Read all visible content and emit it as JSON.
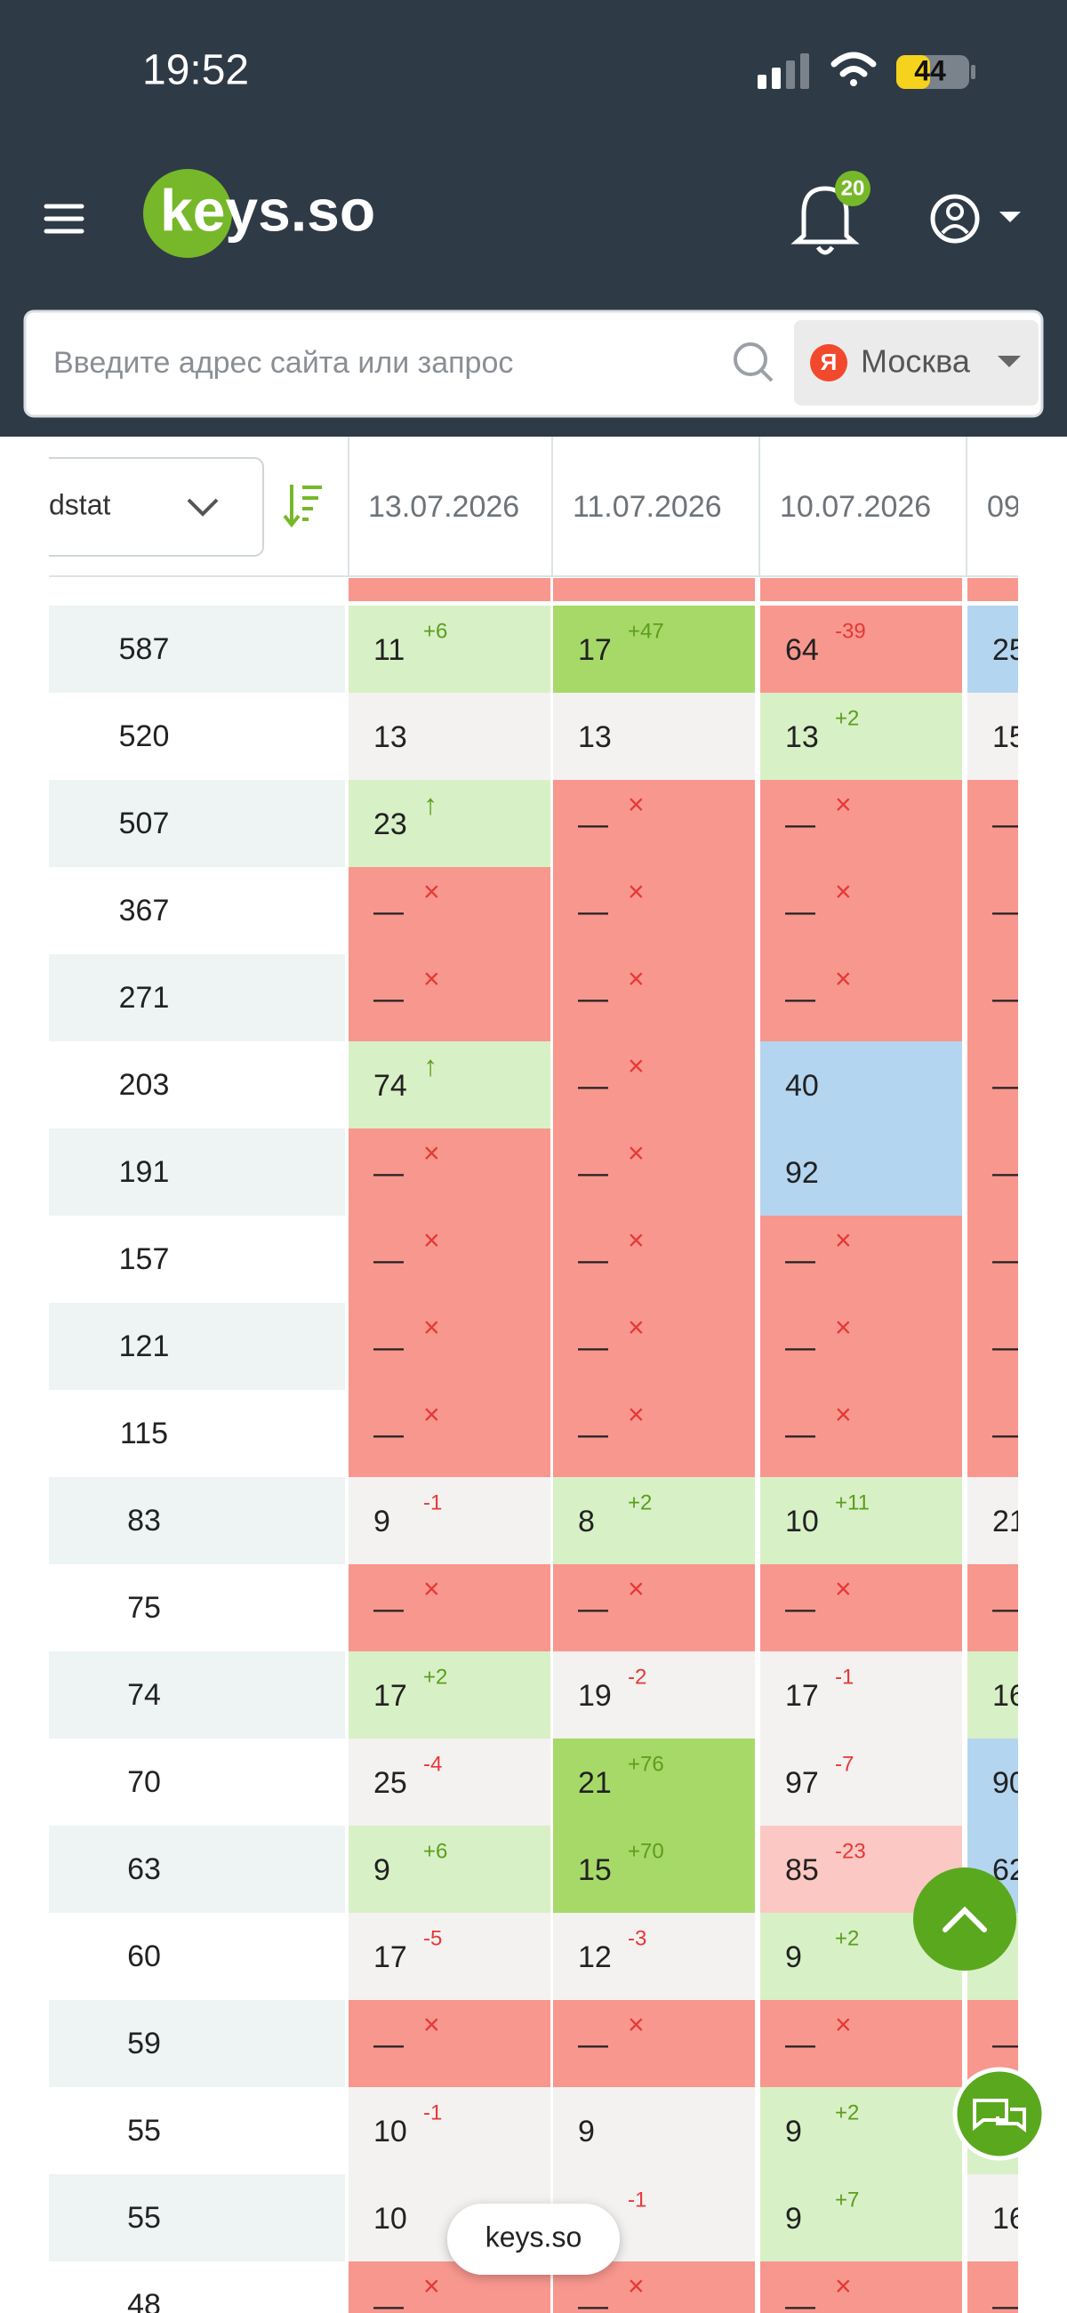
{
  "status_bar": {
    "time": "19:52",
    "battery": "44"
  },
  "header": {
    "logo": "keys.so",
    "notifications": "20"
  },
  "search": {
    "placeholder": "Введите адрес сайта или запрос",
    "region": "Москва",
    "region_icon": "Я"
  },
  "table": {
    "source_select": "dstat",
    "dates": [
      "13.07.2026",
      "11.07.2026",
      "10.07.2026",
      "09"
    ],
    "rows": [
      {
        "wordstat": 587,
        "cells": [
          {
            "value": 11,
            "change": "+6",
            "bg": "#d8f0c6"
          },
          {
            "value": 17,
            "change": "+47",
            "bg": "#a7d968"
          },
          {
            "value": 64,
            "change": "-39",
            "bg": "#f8978e"
          },
          {
            "value": 25,
            "bg": "#b4d5ef"
          }
        ]
      },
      {
        "wordstat": 520,
        "cells": [
          {
            "value": 13,
            "bg": "#f4f1f1"
          },
          {
            "value": 13,
            "bg": "#f4f1f1"
          },
          {
            "value": 13,
            "change": "+2",
            "bg": "#d8f0c6"
          },
          {
            "value": 15,
            "bg": "#f4f1f1"
          }
        ]
      },
      {
        "wordstat": 507,
        "cells": [
          {
            "value": 23,
            "change": "↑",
            "bg": "#d8f0c6"
          },
          {
            "value": "—",
            "change": "×",
            "bg": "#f8978e"
          },
          {
            "value": "—",
            "change": "×",
            "bg": "#f8978e"
          },
          {
            "value": "—",
            "bg": "#f8978e"
          }
        ]
      },
      {
        "wordstat": 367,
        "cells": [
          {
            "value": "—",
            "change": "×",
            "bg": "#f8978e"
          },
          {
            "value": "—",
            "change": "×",
            "bg": "#f8978e"
          },
          {
            "value": "—",
            "change": "×",
            "bg": "#f8978e"
          },
          {
            "value": "—",
            "bg": "#f8978e"
          }
        ]
      },
      {
        "wordstat": 271,
        "cells": [
          {
            "value": "—",
            "change": "×",
            "bg": "#f8978e"
          },
          {
            "value": "—",
            "change": "×",
            "bg": "#f8978e"
          },
          {
            "value": "—",
            "change": "×",
            "bg": "#f8978e"
          },
          {
            "value": "—",
            "bg": "#f8978e"
          }
        ]
      },
      {
        "wordstat": 203,
        "cells": [
          {
            "value": 74,
            "change": "↑",
            "bg": "#d8f0c6"
          },
          {
            "value": "—",
            "change": "×",
            "bg": "#f8978e"
          },
          {
            "value": 40,
            "bg": "#b4d5ef"
          },
          {
            "value": "—",
            "bg": "#f8978e"
          }
        ]
      },
      {
        "wordstat": 191,
        "cells": [
          {
            "value": "—",
            "change": "×",
            "bg": "#f8978e"
          },
          {
            "value": "—",
            "change": "×",
            "bg": "#f8978e"
          },
          {
            "value": 92,
            "bg": "#b4d5ef"
          },
          {
            "value": "—",
            "bg": "#f8978e"
          }
        ]
      },
      {
        "wordstat": 157,
        "cells": [
          {
            "value": "—",
            "change": "×",
            "bg": "#f8978e"
          },
          {
            "value": "—",
            "change": "×",
            "bg": "#f8978e"
          },
          {
            "value": "—",
            "change": "×",
            "bg": "#f8978e"
          },
          {
            "value": "—",
            "bg": "#f8978e"
          }
        ]
      },
      {
        "wordstat": 121,
        "cells": [
          {
            "value": "—",
            "change": "×",
            "bg": "#f8978e"
          },
          {
            "value": "—",
            "change": "×",
            "bg": "#f8978e"
          },
          {
            "value": "—",
            "change": "×",
            "bg": "#f8978e"
          },
          {
            "value": "—",
            "bg": "#f8978e"
          }
        ]
      },
      {
        "wordstat": 115,
        "cells": [
          {
            "value": "—",
            "change": "×",
            "bg": "#f8978e"
          },
          {
            "value": "—",
            "change": "×",
            "bg": "#f8978e"
          },
          {
            "value": "—",
            "change": "×",
            "bg": "#f8978e"
          },
          {
            "value": "—",
            "bg": "#f8978e"
          }
        ]
      },
      {
        "wordstat": 83,
        "cells": [
          {
            "value": 9,
            "change": "-1",
            "bg": "#f4f1f1"
          },
          {
            "value": 8,
            "change": "+2",
            "bg": "#d8f0c6"
          },
          {
            "value": 10,
            "change": "+11",
            "bg": "#d8f0c6"
          },
          {
            "value": 21,
            "bg": "#f4f1f1"
          }
        ]
      },
      {
        "wordstat": 75,
        "cells": [
          {
            "value": "—",
            "change": "×",
            "bg": "#f8978e"
          },
          {
            "value": "—",
            "change": "×",
            "bg": "#f8978e"
          },
          {
            "value": "—",
            "change": "×",
            "bg": "#f8978e"
          },
          {
            "value": "—",
            "bg": "#f8978e"
          }
        ]
      },
      {
        "wordstat": 74,
        "cells": [
          {
            "value": 17,
            "change": "+2",
            "bg": "#d8f0c6"
          },
          {
            "value": 19,
            "change": "-2",
            "bg": "#f4f1f1"
          },
          {
            "value": 17,
            "change": "-1",
            "bg": "#f4f1f1"
          },
          {
            "value": 16,
            "bg": "#d8f0c6"
          }
        ]
      },
      {
        "wordstat": 70,
        "cells": [
          {
            "value": 25,
            "change": "-4",
            "bg": "#f4f1f1"
          },
          {
            "value": 21,
            "change": "+76",
            "bg": "#a7d968"
          },
          {
            "value": 97,
            "change": "-7",
            "bg": "#f4f1f1"
          },
          {
            "value": 90,
            "bg": "#b4d5ef"
          }
        ]
      },
      {
        "wordstat": 63,
        "cells": [
          {
            "value": 9,
            "change": "+6",
            "bg": "#d8f0c6"
          },
          {
            "value": 15,
            "change": "+70",
            "bg": "#a7d968"
          },
          {
            "value": 85,
            "change": "-23",
            "bg": "#fbc8c3"
          },
          {
            "value": 62,
            "bg": "#b4d5ef"
          }
        ]
      },
      {
        "wordstat": 60,
        "cells": [
          {
            "value": 17,
            "change": "-5",
            "bg": "#f4f1f1"
          },
          {
            "value": 12,
            "change": "-3",
            "bg": "#f4f1f1"
          },
          {
            "value": 9,
            "change": "+2",
            "bg": "#d8f0c6"
          },
          {
            "bg": "#d8f0c6"
          }
        ]
      },
      {
        "wordstat": 59,
        "cells": [
          {
            "value": "—",
            "change": "×",
            "bg": "#f8978e"
          },
          {
            "value": "—",
            "change": "×",
            "bg": "#f8978e"
          },
          {
            "value": "—",
            "change": "×",
            "bg": "#f8978e"
          },
          {
            "value": "—",
            "bg": "#f8978e"
          }
        ]
      },
      {
        "wordstat": 55,
        "cells": [
          {
            "value": 10,
            "change": "-1",
            "bg": "#f4f1f1"
          },
          {
            "value": 9,
            "bg": "#f4f1f1"
          },
          {
            "value": 9,
            "change": "+2",
            "bg": "#d8f0c6"
          },
          {
            "bg": "#d8f0c6"
          }
        ]
      },
      {
        "wordstat": 55,
        "cells": [
          {
            "value": 10,
            "bg": "#f4f1f1"
          },
          {
            "change": "-1",
            "bg": "#f4f1f1"
          },
          {
            "value": 9,
            "change": "+7",
            "bg": "#d8f0c6"
          },
          {
            "value": 16,
            "bg": "#f4f1f1"
          }
        ]
      },
      {
        "wordstat": 48,
        "cells": [
          {
            "value": "—",
            "change": "×",
            "bg": "#f8978e"
          },
          {
            "value": "—",
            "change": "×",
            "bg": "#f8978e"
          },
          {
            "value": "—",
            "change": "×",
            "bg": "#f8978e"
          },
          {
            "value": "—",
            "bg": "#f8978e"
          }
        ]
      }
    ]
  },
  "footer": {
    "site_pill": "keys.so"
  }
}
